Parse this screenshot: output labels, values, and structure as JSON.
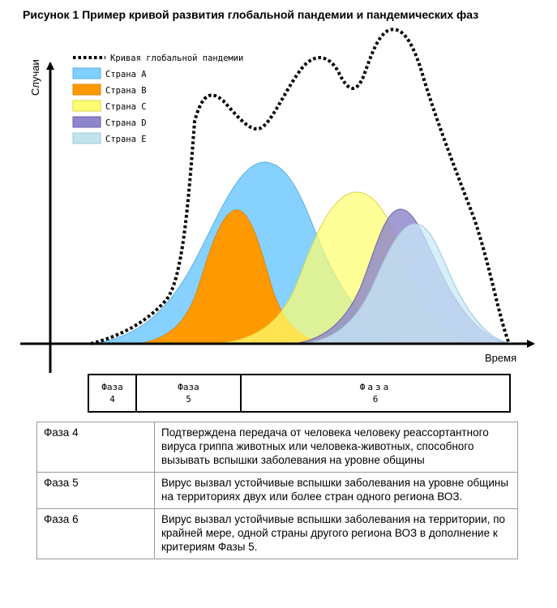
{
  "figure": {
    "title": "Рисунок 1  Пример кривой развития глобальной пандемии и пандемических фаз",
    "y_axis_label": "Случаи",
    "x_axis_label": "Время"
  },
  "legend": [
    {
      "label": "Кривая глобальной пандемии",
      "style": "dotted",
      "color": "#000000"
    },
    {
      "label": "Страна A",
      "color": "#7fcfff"
    },
    {
      "label": "Страна B",
      "color": "#ff9900"
    },
    {
      "label": "Страна C",
      "color": "#ffff70"
    },
    {
      "label": "Страна D",
      "color": "#8e86cc"
    },
    {
      "label": "Страна E",
      "color": "#bfe4ec"
    }
  ],
  "phase_bar": [
    {
      "name": "Фаза",
      "num": "4"
    },
    {
      "name": "Фаза",
      "num": "5"
    },
    {
      "name": "Фаза",
      "num": "6"
    }
  ],
  "phase_table": [
    {
      "phase": "Фаза 4",
      "text": "Подтверждена передача от человека человеку реассортантного вируса гриппа животных или человека-животных, способного вызывать вспышки заболевания на уровне общины"
    },
    {
      "phase": "Фаза 5",
      "text": "Вирус вызвал устойчивые вспышки заболевания на уровне общины на территориях двух или более стран одного региона ВОЗ."
    },
    {
      "phase": "Фаза 6",
      "text": "Вирус вызвал устойчивые вспышки заболевания на территории, по крайней мере, одной страны другого региона ВОЗ в дополнение к критериям Фазы 5."
    }
  ]
}
